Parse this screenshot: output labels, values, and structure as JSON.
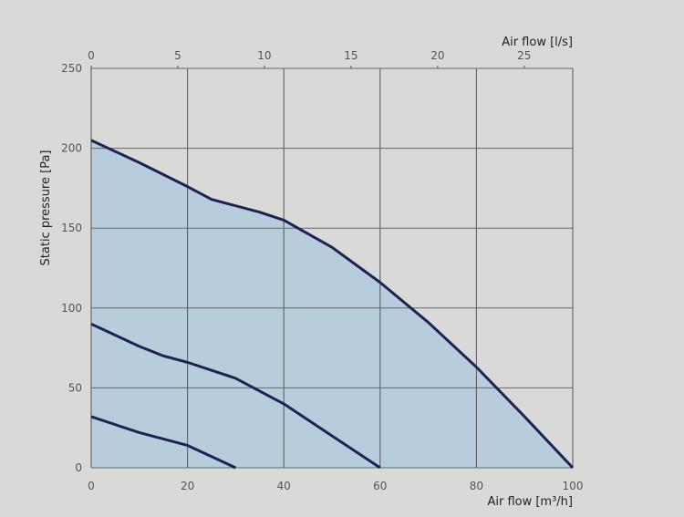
{
  "chart_data": {
    "type": "line",
    "xlabel": "Air flow [m³/h]",
    "x2label": "Air flow [l/s]",
    "ylabel": "Static pressure [Pa]",
    "xlim": [
      0,
      100
    ],
    "ylim": [
      0,
      250
    ],
    "x2lim": [
      0,
      27.8
    ],
    "xticks": [
      "0",
      "20",
      "40",
      "60",
      "80",
      "100"
    ],
    "x2ticks": [
      "0",
      "5",
      "10",
      "15",
      "20",
      "25"
    ],
    "yticks": [
      "0",
      "50",
      "100",
      "150",
      "200",
      "250"
    ],
    "grid": true,
    "fill_color": "#b8cddb",
    "line_color": "#1c2455",
    "series": [
      {
        "x": [
          0,
          10,
          20,
          25,
          35,
          40,
          50,
          60,
          70,
          80,
          90,
          100
        ],
        "y": [
          205,
          191,
          176,
          168,
          160,
          155,
          138,
          116,
          91,
          63,
          32,
          0
        ]
      },
      {
        "x": [
          0,
          10,
          15,
          20,
          30,
          40,
          50,
          60
        ],
        "y": [
          90,
          76,
          70,
          66,
          56,
          40,
          20,
          0
        ]
      },
      {
        "x": [
          0,
          10,
          20,
          30
        ],
        "y": [
          32,
          22,
          14,
          0
        ]
      }
    ]
  }
}
